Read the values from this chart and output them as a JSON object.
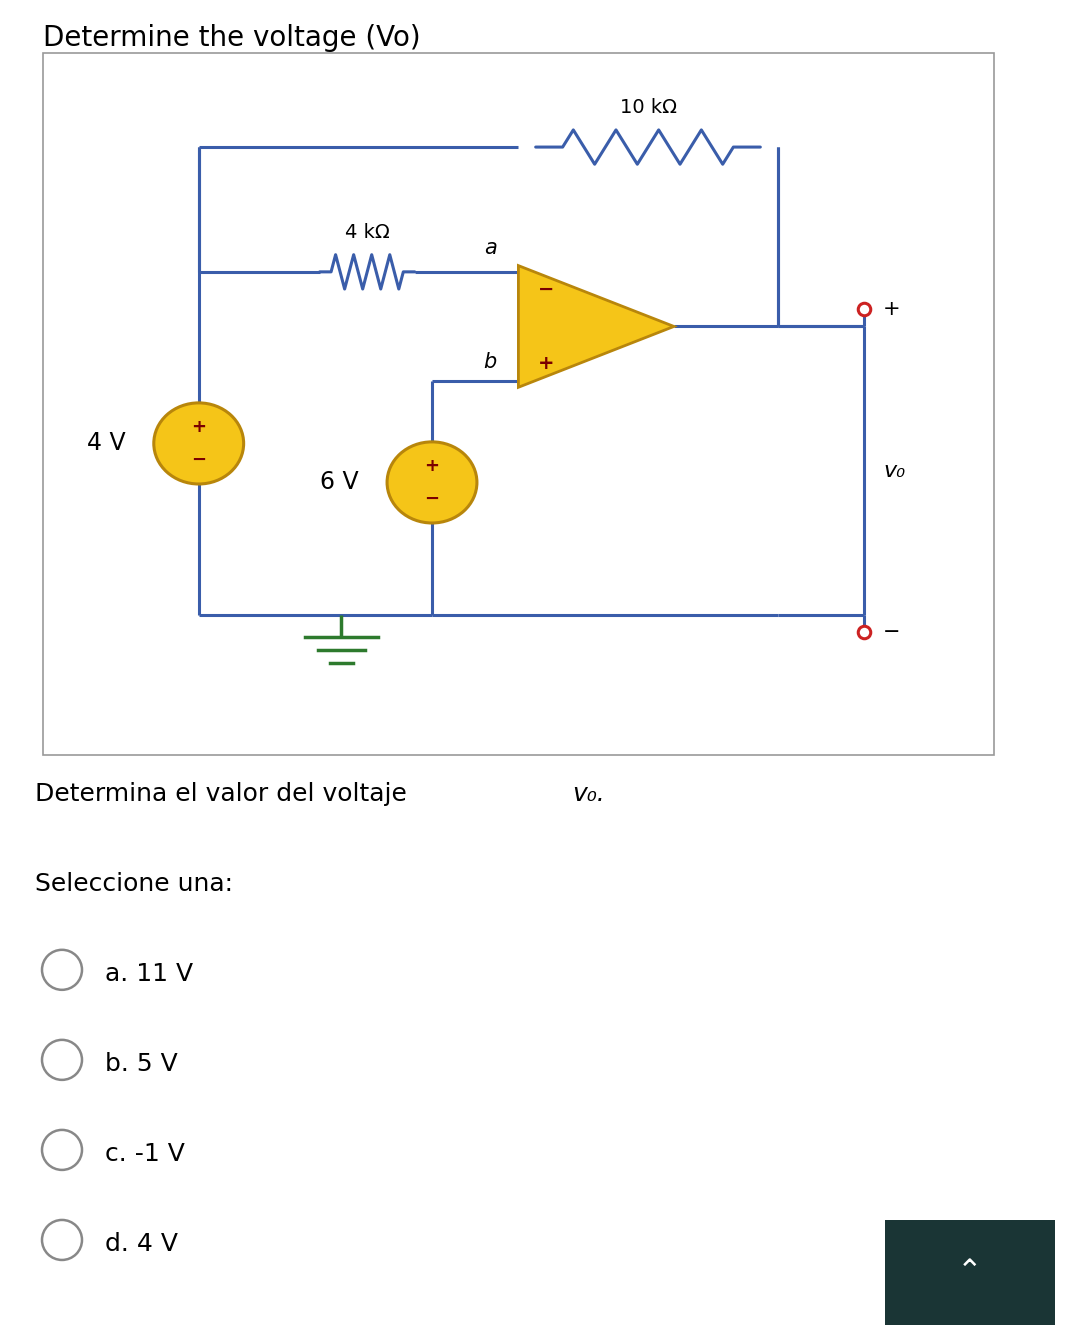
{
  "title": "Determine the voltage (Vo)",
  "title_fontsize": 20,
  "bg_color": "#ffffff",
  "circuit_bg": "#ffffff",
  "wire_color": "#3a5daa",
  "wire_lw": 2.2,
  "opamp_fill": "#f5c518",
  "opamp_edge": "#b8860b",
  "source_fill": "#f5c518",
  "source_edge": "#b8860b",
  "ground_color": "#2d7a2d",
  "node_color": "#cc2222",
  "question_text": "Determina el valor del voltaje ",
  "question_sub": "v₀.",
  "select_text": "Seleccione una:",
  "options": [
    "a. 11 V",
    "b. 5 V",
    "c. -1 V",
    "d. 4 V"
  ],
  "answer_bg": "#1a3535",
  "answer_symbol": "⌃",
  "lower_bg": "#c8c8c8",
  "r1_label": "4 kΩ",
  "r2_label": "10 kΩ",
  "v1_label": "4 V",
  "v2_label": "6 V",
  "node_a_label": "a",
  "node_b_label": "b",
  "vo_label": "v₀",
  "inner_plus": "+",
  "inner_minus": "−"
}
